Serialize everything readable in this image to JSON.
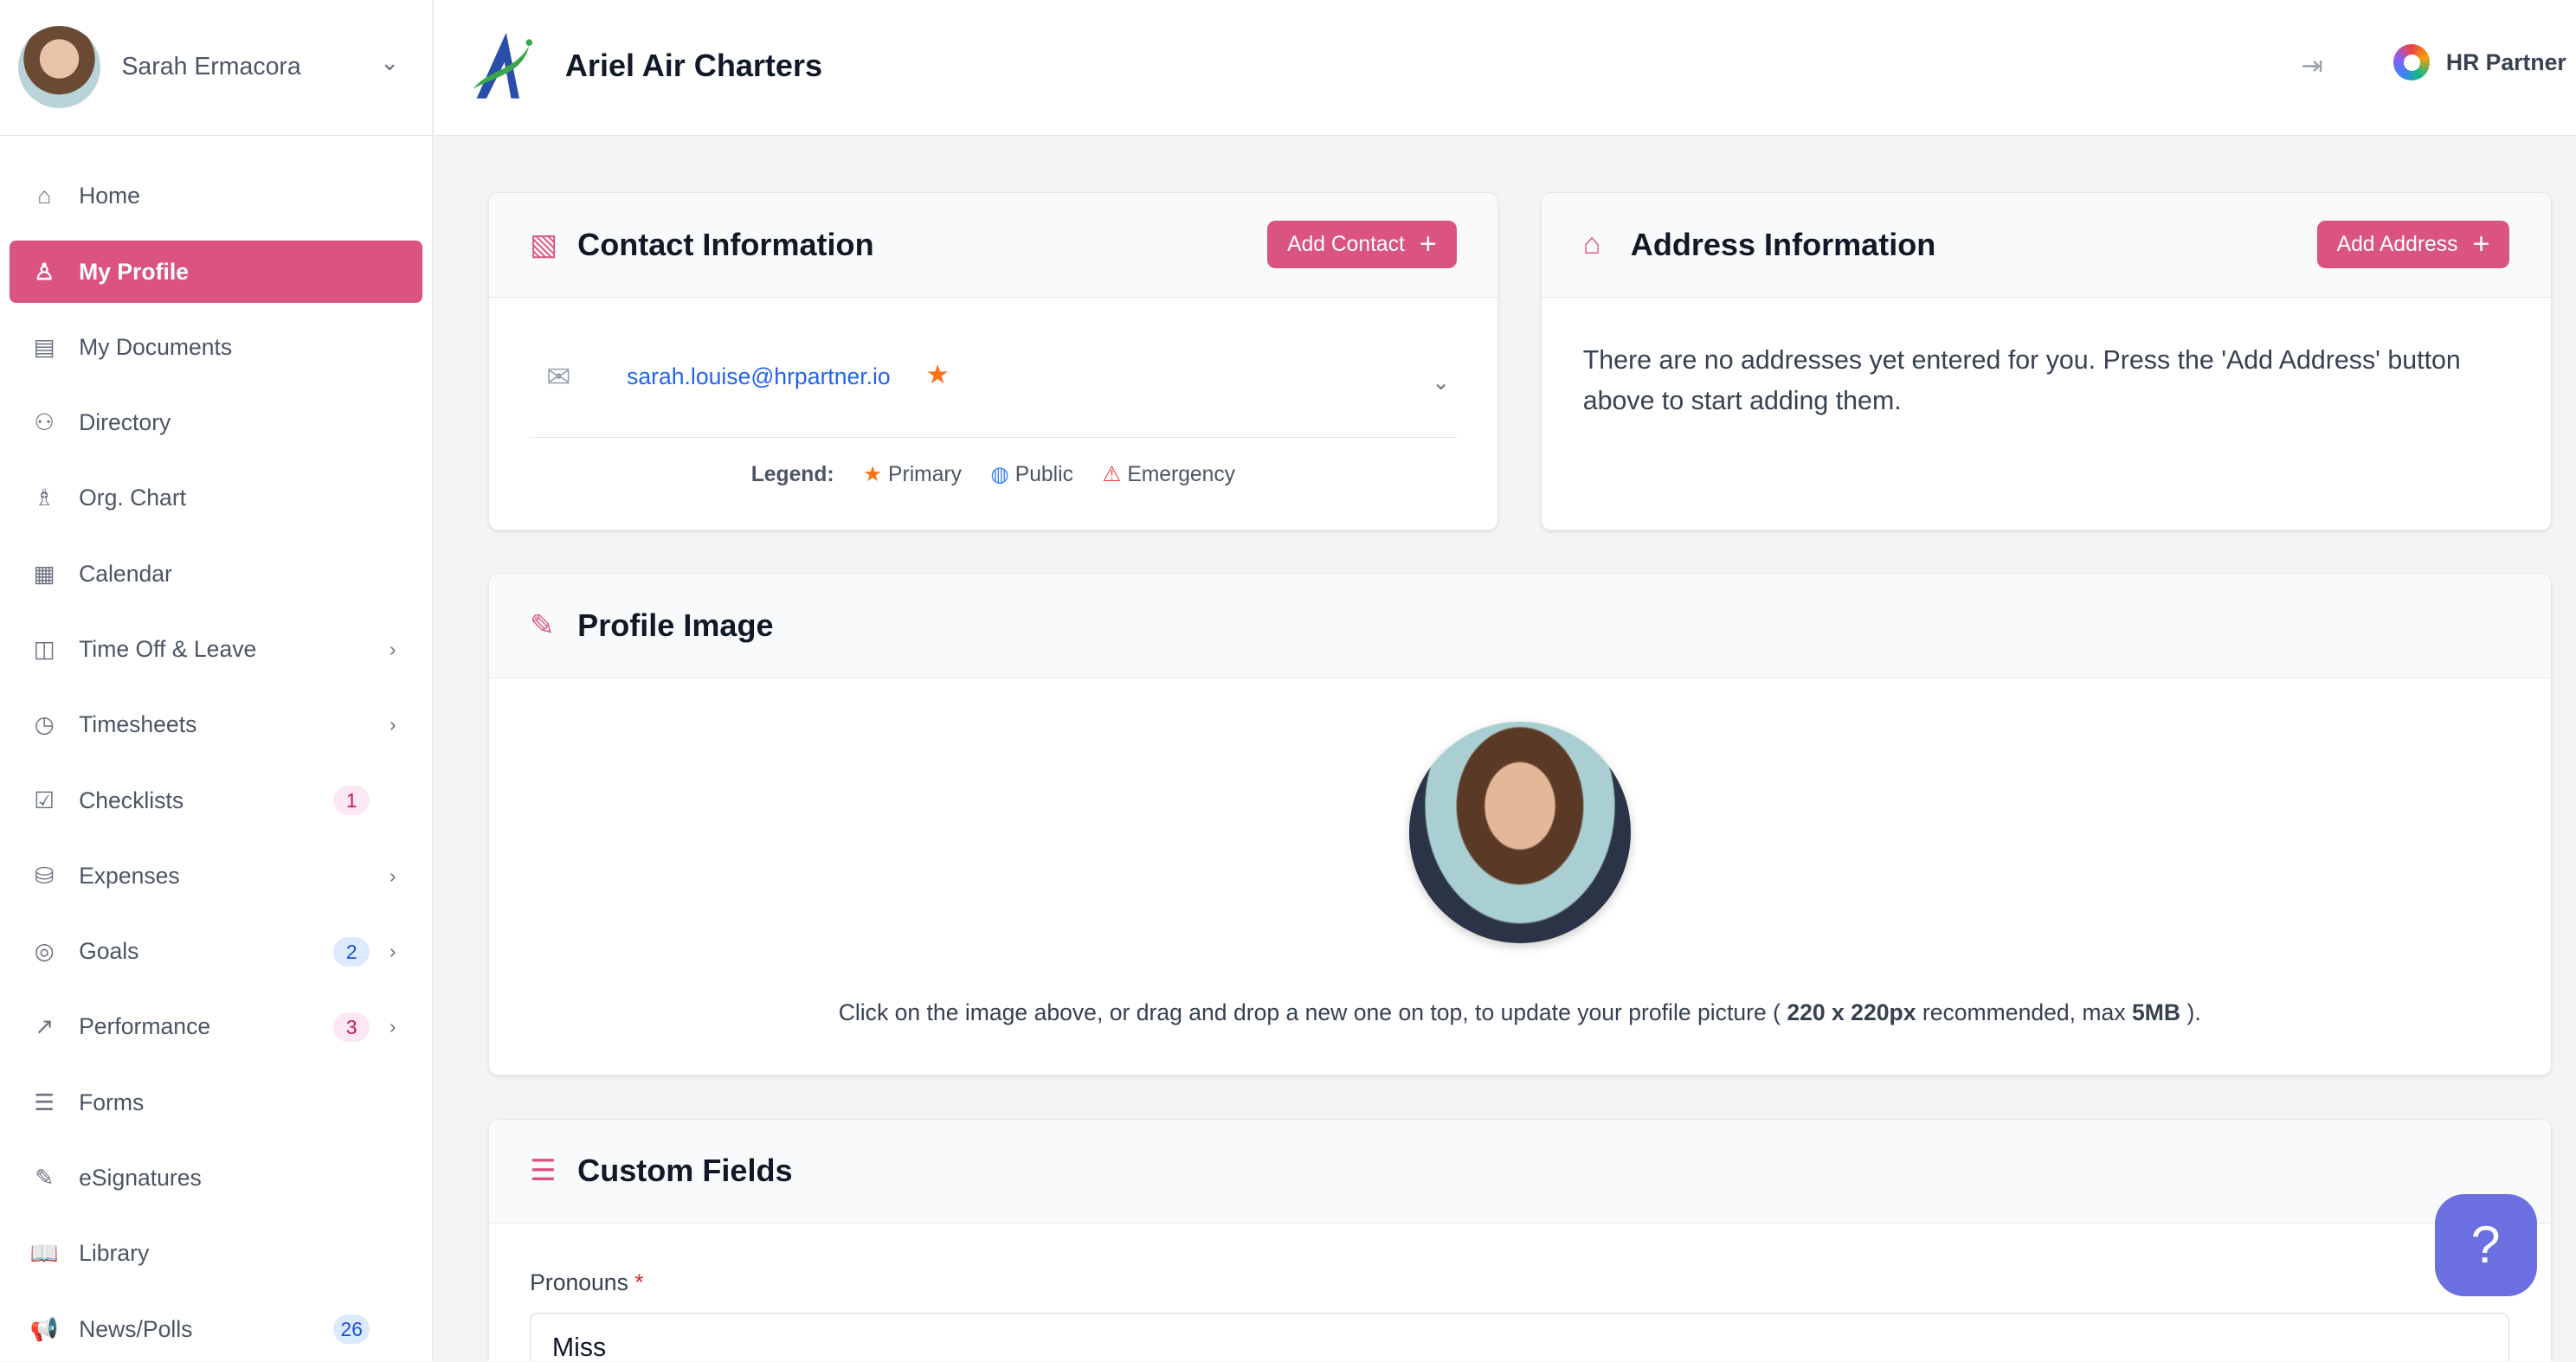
{
  "user": {
    "name": "Sarah Ermacora"
  },
  "sidebar": {
    "items": [
      {
        "label": "Home",
        "icon": "home-icon",
        "glyph": "⌂"
      },
      {
        "label": "My Profile",
        "icon": "user-icon",
        "glyph": "♙",
        "active": true
      },
      {
        "label": "My Documents",
        "icon": "document-icon",
        "glyph": "▤"
      },
      {
        "label": "Directory",
        "icon": "users-icon",
        "glyph": "⚇"
      },
      {
        "label": "Org. Chart",
        "icon": "org-chart-icon",
        "glyph": "♗"
      },
      {
        "label": "Calendar",
        "icon": "calendar-icon",
        "glyph": "▦"
      },
      {
        "label": "Time Off & Leave",
        "icon": "briefcase-icon",
        "glyph": "◫",
        "chevron": true
      },
      {
        "label": "Timesheets",
        "icon": "clock-icon",
        "glyph": "◷",
        "chevron": true
      },
      {
        "label": "Checklists",
        "icon": "checklist-icon",
        "glyph": "☑",
        "badge": "1",
        "badgeColor": "pink"
      },
      {
        "label": "Expenses",
        "icon": "coins-icon",
        "glyph": "⛁",
        "chevron": true
      },
      {
        "label": "Goals",
        "icon": "target-icon",
        "glyph": "◎",
        "badge": "2",
        "badgeColor": "blue",
        "chevron": true
      },
      {
        "label": "Performance",
        "icon": "trend-icon",
        "glyph": "↗",
        "badge": "3",
        "badgeColor": "pink",
        "chevron": true
      },
      {
        "label": "Forms",
        "icon": "form-icon",
        "glyph": "☰"
      },
      {
        "label": "eSignatures",
        "icon": "pen-icon",
        "glyph": "✎"
      },
      {
        "label": "Library",
        "icon": "book-icon",
        "glyph": "📖"
      },
      {
        "label": "News/Polls",
        "icon": "megaphone-icon",
        "glyph": "📢",
        "badge": "26",
        "badgeColor": "blue"
      }
    ]
  },
  "header": {
    "company": "Ariel Air Charters",
    "brand": "HR Partner"
  },
  "contact": {
    "title": "Contact Information",
    "add_label": "Add Contact",
    "email": "sarah.louise@hrpartner.io",
    "legend_label": "Legend:",
    "legend": [
      "Primary",
      "Public",
      "Emergency"
    ]
  },
  "address": {
    "title": "Address Information",
    "add_label": "Add Address",
    "empty": "There are no addresses yet entered for you. Press the 'Add Address' button above to start adding them."
  },
  "profile_image": {
    "title": "Profile Image",
    "hint_pre": "Click on the image above, or drag and drop a new one on top, to update your profile picture ( ",
    "hint_size": "220 x 220px",
    "hint_mid": " recommended, max ",
    "hint_max": "5MB",
    "hint_post": " )."
  },
  "custom_fields": {
    "title": "Custom Fields",
    "pronouns_label": "Pronouns",
    "required_mark": "*",
    "pronouns_value": "Miss"
  },
  "help": {
    "label": "?"
  },
  "colors": {
    "accent": "#db5380",
    "link": "#2563eb",
    "star": "#f97316",
    "help": "#6b6fe0"
  }
}
